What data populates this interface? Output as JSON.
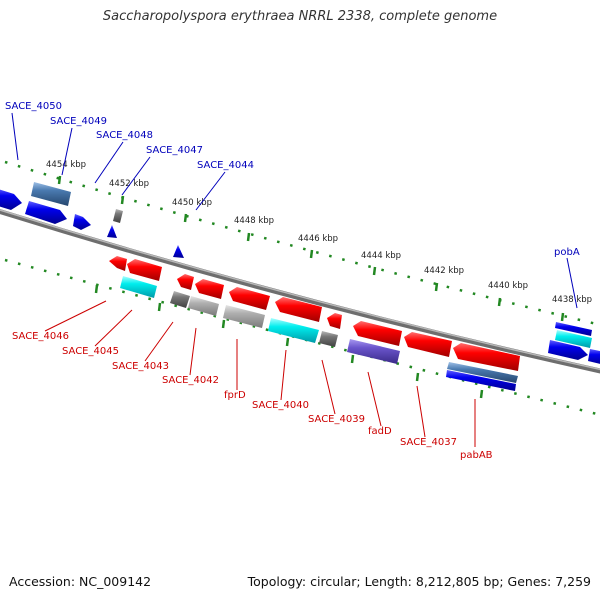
{
  "title": "Saccharopolyspora erythraea NRRL 2338, complete genome",
  "footer": {
    "accession": "Accession: NC_009142",
    "summary": "Topology: circular; Length: 8,212,805 bp; Genes: 7,259"
  },
  "ruler_labels": [
    "4454 kbp",
    "4452 kbp",
    "4450 kbp",
    "4448 kbp",
    "4446 kbp",
    "4444 kbp",
    "4442 kbp",
    "4440 kbp",
    "4438 kbp"
  ],
  "gene_labels_top": [
    "SACE_4050",
    "SACE_4049",
    "SACE_4048",
    "SACE_4047",
    "SACE_4044",
    "pobA"
  ],
  "gene_labels_bottom": [
    "SACE_4046",
    "SACE_4045",
    "SACE_4043",
    "SACE_4042",
    "fprD",
    "SACE_4040",
    "SACE_4039",
    "fadD",
    "SACE_4037",
    "pabAB"
  ],
  "colors": {
    "forward": "#0000ee",
    "reverse": "#ee0000",
    "backbone": "#808080",
    "ticks": "#228822",
    "label_top": "#0000bb",
    "label_bottom": "#cc0000",
    "cyan": "#00e5ee",
    "steelblue": "#4a7ab0",
    "purple": "#6a55cc",
    "gray": "#777777",
    "silver": "#aaaaaa"
  }
}
